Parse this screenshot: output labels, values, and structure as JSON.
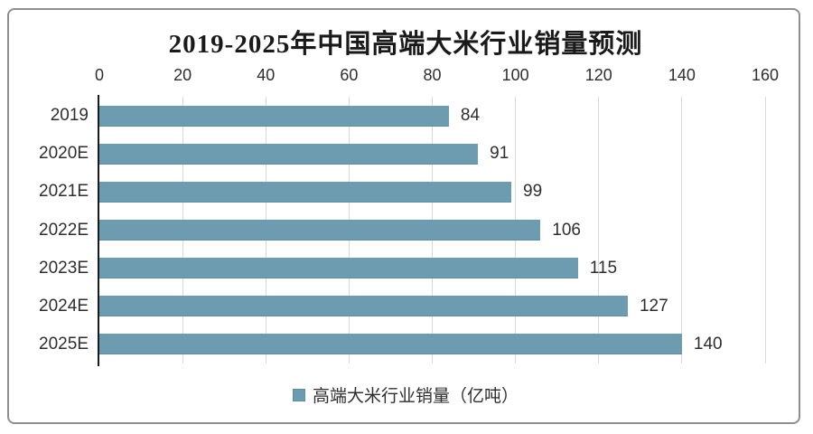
{
  "chart_data": {
    "type": "bar",
    "orientation": "horizontal",
    "title": "2019-2025年中国高端大米行业销量预测",
    "categories": [
      "2019",
      "2020E",
      "2021E",
      "2022E",
      "2023E",
      "2024E",
      "2025E"
    ],
    "values": [
      84,
      91,
      99,
      106,
      115,
      127,
      140
    ],
    "x_ticks": [
      0,
      20,
      40,
      60,
      80,
      100,
      120,
      140,
      160
    ],
    "xlim": [
      0,
      160
    ],
    "xlabel": "",
    "ylabel": "",
    "grid": "vertical-gridlines",
    "value_labels": true,
    "legend": {
      "label": "高端大米行业销量（亿吨）",
      "position": "bottom"
    }
  },
  "colors": {
    "bar": "#6D9BB0",
    "bar_edge": "#5E8EA3",
    "gridline": "#D9D9D9",
    "axis_line": "#1A1A1A",
    "title_text": "#1A1A1A",
    "label_text": "#2E2E2E",
    "frame_border": "#8F8F8F",
    "background": "#FFFFFF"
  }
}
